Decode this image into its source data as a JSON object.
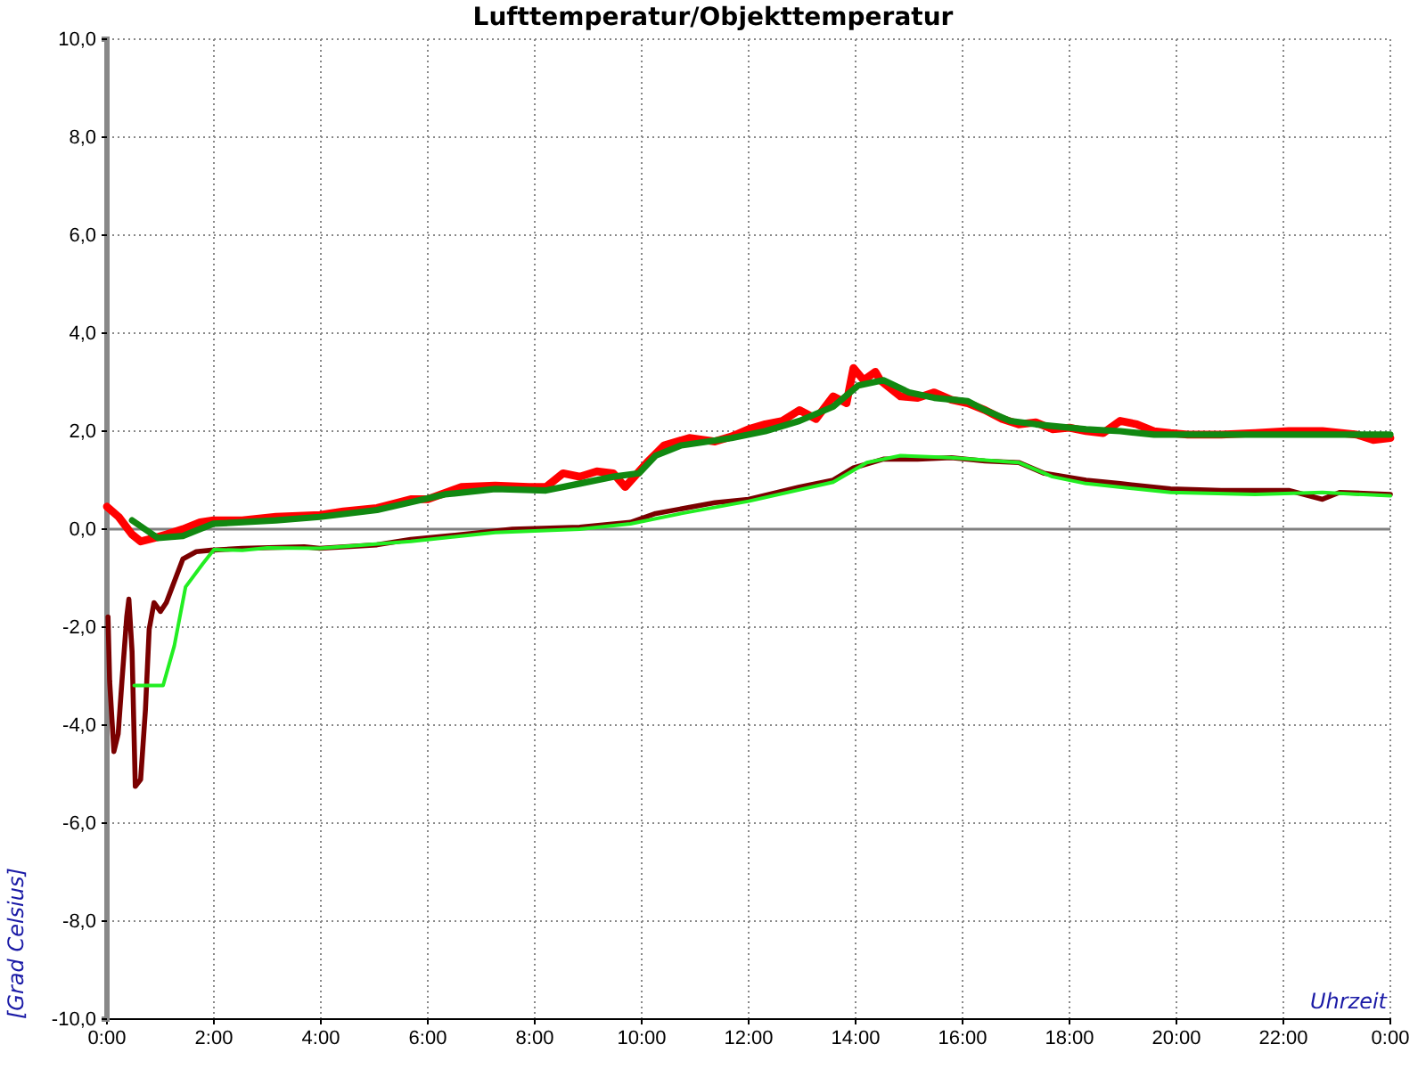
{
  "chart_data": {
    "type": "line",
    "title": "Lufttemperatur/Objekttemperatur",
    "xlabel": "Uhrzeit",
    "ylabel": "[Grad Celsius]",
    "xlim": [
      0,
      24
    ],
    "xticks": [
      {
        "value": 0,
        "label": "0:00"
      },
      {
        "value": 2,
        "label": "2:00"
      },
      {
        "value": 4,
        "label": "4:00"
      },
      {
        "value": 6,
        "label": "6:00"
      },
      {
        "value": 8,
        "label": "8:00"
      },
      {
        "value": 10,
        "label": "10:00"
      },
      {
        "value": 12,
        "label": "12:00"
      },
      {
        "value": 14,
        "label": "14:00"
      },
      {
        "value": 16,
        "label": "16:00"
      },
      {
        "value": 18,
        "label": "18:00"
      },
      {
        "value": 20,
        "label": "20:00"
      },
      {
        "value": 22,
        "label": "22:00"
      },
      {
        "value": 24,
        "label": "0:00"
      }
    ],
    "ylim": [
      -10,
      10
    ],
    "yticks": [
      {
        "value": -10,
        "label": "-10,0"
      },
      {
        "value": -8,
        "label": "-8,0"
      },
      {
        "value": -6,
        "label": "-6,0"
      },
      {
        "value": -4,
        "label": "-4,0"
      },
      {
        "value": -2,
        "label": "-2,0"
      },
      {
        "value": 0,
        "label": "0,0"
      },
      {
        "value": 2,
        "label": "2,0"
      },
      {
        "value": 4,
        "label": "4,0"
      },
      {
        "value": 6,
        "label": "6,0"
      },
      {
        "value": 8,
        "label": "8,0"
      },
      {
        "value": 10,
        "label": "10,0"
      }
    ],
    "grid": true,
    "marker": "none",
    "line_style": "solid",
    "ref_lines": [
      {
        "axis": "y",
        "value": 0,
        "color": "#808080"
      }
    ],
    "series": [
      {
        "color": "#ff0000",
        "x": [
          0,
          0.22,
          0.47,
          0.63,
          0.88,
          1.11,
          1.42,
          1.74,
          1.99,
          2.53,
          3.16,
          3.98,
          4.42,
          5.05,
          5.68,
          6.0,
          6.63,
          7.26,
          7.89,
          8.21,
          8.53,
          8.84,
          9.16,
          9.47,
          9.69,
          10.1,
          10.42,
          10.89,
          11.37,
          11.68,
          12.0,
          12.31,
          12.63,
          12.95,
          13.26,
          13.58,
          13.83,
          13.96,
          14.15,
          14.37,
          14.46,
          14.84,
          15.16,
          15.47,
          15.79,
          16.1,
          16.42,
          16.74,
          17.05,
          17.37,
          17.68,
          18.0,
          18.31,
          18.63,
          18.95,
          19.26,
          19.58,
          19.89,
          20.21,
          20.84,
          21.47,
          22.1,
          22.73,
          23.37,
          23.68,
          24
        ],
        "values": [
          0.46,
          0.25,
          -0.11,
          -0.25,
          -0.18,
          -0.11,
          0,
          0.14,
          0.18,
          0.18,
          0.25,
          0.29,
          0.36,
          0.43,
          0.61,
          0.61,
          0.86,
          0.89,
          0.86,
          0.86,
          1.14,
          1.07,
          1.18,
          1.14,
          0.86,
          1.36,
          1.71,
          1.86,
          1.79,
          1.89,
          2.04,
          2.14,
          2.21,
          2.43,
          2.25,
          2.71,
          2.57,
          3.29,
          3.04,
          3.21,
          3.04,
          2.71,
          2.68,
          2.79,
          2.64,
          2.57,
          2.43,
          2.25,
          2.14,
          2.18,
          2.04,
          2.07,
          2.0,
          1.96,
          2.21,
          2.14,
          2.0,
          1.96,
          1.93,
          1.93,
          1.96,
          2.0,
          2.0,
          1.93,
          1.82,
          1.86
        ]
      },
      {
        "color": "#118811",
        "x": [
          0.47,
          0.95,
          1.42,
          1.99,
          3.16,
          3.98,
          5.05,
          6.32,
          7.26,
          8.21,
          8.84,
          9.47,
          9.95,
          10.26,
          10.74,
          11.68,
          12.31,
          12.95,
          13.58,
          14.05,
          14.52,
          15.0,
          15.47,
          16.1,
          16.42,
          16.89,
          17.37,
          18.31,
          18.95,
          19.58,
          20.21,
          21.47,
          22.73,
          24
        ],
        "values": [
          0.18,
          -0.18,
          -0.14,
          0.11,
          0.18,
          0.25,
          0.39,
          0.71,
          0.82,
          0.79,
          0.93,
          1.07,
          1.14,
          1.5,
          1.71,
          1.86,
          2.0,
          2.21,
          2.5,
          2.93,
          3.04,
          2.79,
          2.68,
          2.61,
          2.43,
          2.21,
          2.14,
          2.04,
          2.0,
          1.93,
          1.93,
          1.93,
          1.93,
          1.93
        ]
      },
      {
        "color": "#7a0000",
        "x": [
          0.02,
          0.05,
          0.13,
          0.21,
          0.28,
          0.37,
          0.41,
          0.47,
          0.53,
          0.63,
          0.72,
          0.79,
          0.88,
          1.0,
          1.11,
          1.26,
          1.42,
          1.67,
          1.95,
          2.53,
          3.69,
          3.98,
          5.05,
          5.68,
          6.63,
          7.58,
          8.84,
          9.79,
          10.26,
          11.37,
          12.0,
          12.95,
          13.58,
          13.96,
          14.52,
          15.16,
          15.79,
          16.42,
          17.05,
          17.53,
          18.31,
          18.95,
          19.89,
          20.84,
          22.1,
          22.73,
          23.05,
          24
        ],
        "values": [
          -1.79,
          -3.1,
          -4.54,
          -4.18,
          -3.11,
          -1.79,
          -1.43,
          -2.5,
          -5.25,
          -5.11,
          -3.68,
          -2.04,
          -1.5,
          -1.68,
          -1.5,
          -1.07,
          -0.61,
          -0.46,
          -0.43,
          -0.39,
          -0.36,
          -0.39,
          -0.32,
          -0.21,
          -0.11,
          0,
          0.04,
          0.14,
          0.32,
          0.54,
          0.61,
          0.86,
          1.0,
          1.25,
          1.43,
          1.43,
          1.46,
          1.39,
          1.36,
          1.14,
          1.0,
          0.93,
          0.82,
          0.79,
          0.79,
          0.61,
          0.75,
          0.71
        ]
      },
      {
        "color": "#22ee22",
        "x": [
          0.51,
          1.05,
          1.26,
          1.47,
          1.79,
          2.0,
          2.53,
          3.0,
          3.98,
          5.68,
          7.26,
          8.84,
          9.79,
          10.74,
          12.0,
          13.58,
          14.21,
          14.84,
          15.79,
          17.05,
          17.68,
          18.31,
          19.89,
          21.47,
          22.73,
          24
        ],
        "values": [
          -3.19,
          -3.19,
          -2.38,
          -1.18,
          -0.71,
          -0.42,
          -0.43,
          -0.38,
          -0.39,
          -0.25,
          -0.07,
          0,
          0.11,
          0.32,
          0.57,
          0.96,
          1.36,
          1.5,
          1.46,
          1.36,
          1.07,
          0.93,
          0.75,
          0.71,
          0.75,
          0.68
        ]
      }
    ]
  }
}
